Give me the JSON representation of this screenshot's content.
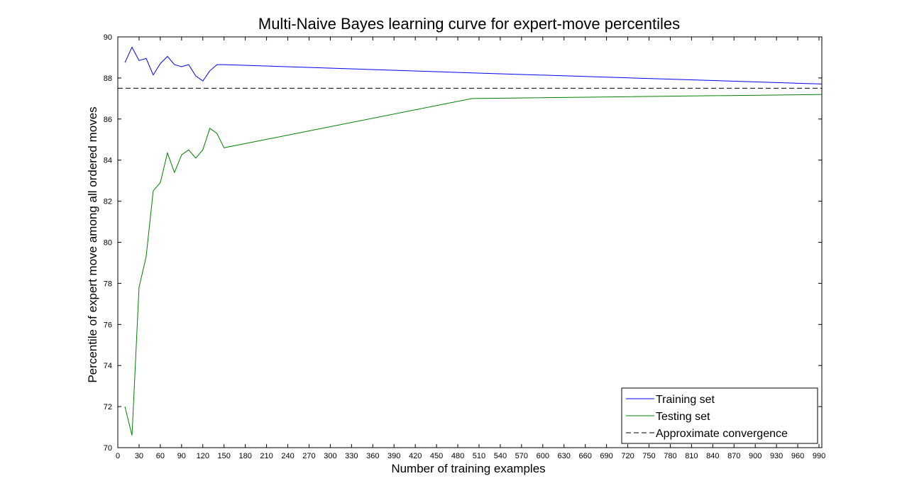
{
  "chart_data": {
    "type": "line",
    "title": "Multi-Naive Bayes learning curve for expert-move percentiles",
    "xlabel": "Number of training examples",
    "ylabel": "Percentile of expert move among all ordered moves",
    "xlim": [
      0,
      994
    ],
    "ylim": [
      70,
      90
    ],
    "x_ticks": [
      0,
      30,
      60,
      90,
      120,
      150,
      180,
      210,
      240,
      270,
      300,
      330,
      360,
      390,
      420,
      450,
      480,
      510,
      540,
      570,
      600,
      630,
      660,
      690,
      720,
      750,
      780,
      810,
      840,
      870,
      900,
      930,
      960,
      990
    ],
    "y_ticks": [
      70,
      72,
      74,
      76,
      78,
      80,
      82,
      84,
      86,
      88,
      90
    ],
    "grid": false,
    "legend_position": "bottom-right",
    "series": [
      {
        "name": "Training set",
        "color": "#0000ff",
        "style": "solid",
        "x": [
          10,
          20,
          30,
          40,
          50,
          60,
          70,
          80,
          90,
          100,
          110,
          120,
          130,
          140,
          150,
          500,
          1000
        ],
        "y": [
          88.75,
          89.5,
          88.85,
          88.95,
          88.15,
          88.7,
          89.05,
          88.65,
          88.55,
          88.65,
          88.1,
          87.85,
          88.35,
          88.65,
          88.65,
          88.25,
          87.7
        ]
      },
      {
        "name": "Testing set",
        "color": "#008000",
        "style": "solid",
        "x": [
          10,
          20,
          30,
          40,
          50,
          60,
          70,
          80,
          90,
          100,
          110,
          120,
          130,
          140,
          150,
          500,
          1000
        ],
        "y": [
          72.0,
          70.6,
          77.8,
          79.3,
          82.5,
          82.9,
          84.35,
          83.4,
          84.25,
          84.5,
          84.1,
          84.5,
          85.55,
          85.3,
          84.6,
          87.0,
          87.2
        ]
      },
      {
        "name": "Approximate convergence",
        "color": "#000000",
        "style": "dashed",
        "x": [
          0,
          1000
        ],
        "y": [
          87.5,
          87.5
        ]
      }
    ]
  }
}
